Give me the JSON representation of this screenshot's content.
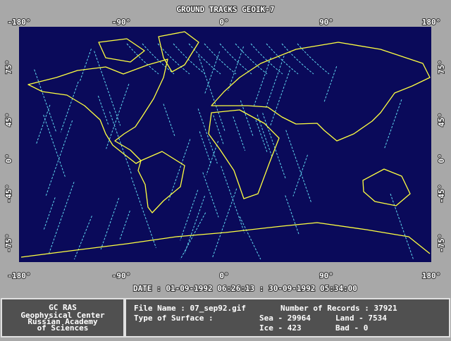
{
  "header": {
    "title": "GROUND TRACKS GEOIK-7"
  },
  "map": {
    "lon_labels": [
      "-180°",
      "-90°",
      "0°",
      "90°",
      "180°"
    ],
    "lat_labels": [
      "75°",
      "45°",
      "0°",
      "-45°",
      "-75°"
    ],
    "date": "DATE : 01-09-1992 06:26:13 : 30-09-1992 05:34:00"
  },
  "footer": {
    "org": [
      "GC RAS",
      "Geophysical Center",
      "Russian Academy",
      "of Sciences"
    ],
    "file_name": "File Name : 07_sep92.gif",
    "records": "Number of Records : 37921",
    "surface_label": "Type of Surface :",
    "sea": "Sea - 29964",
    "land": "Land - 7534",
    "ice": "Ice - 423",
    "bad": "Bad - 0"
  }
}
